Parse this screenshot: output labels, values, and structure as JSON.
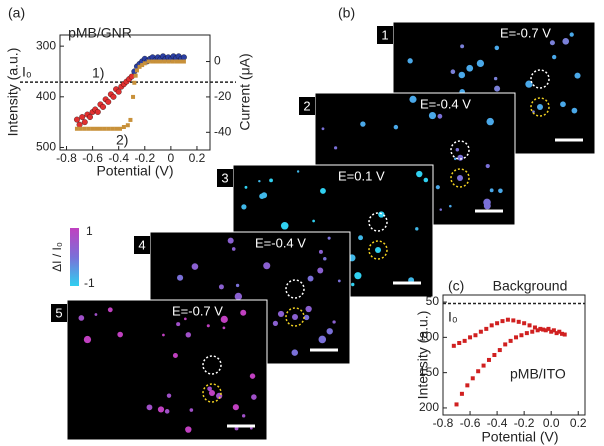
{
  "panel_labels": [
    "(a)",
    "(b)",
    "(c)"
  ],
  "frames": [
    {
      "label": "1",
      "text": "E=-0.7 V"
    },
    {
      "label": "2",
      "text": "E=-0.4 V"
    },
    {
      "label": "3",
      "text": "E=0.1 V"
    },
    {
      "label": "4",
      "text": "E=-0.4 V"
    },
    {
      "label": "5",
      "text": "E=-0.7 V"
    }
  ],
  "colorbar": {
    "label": "ΔI / I₀",
    "top": "1",
    "bottom": "-1"
  },
  "chart_data": [
    {
      "type": "scatter",
      "title": "pMB/GNR",
      "xlabel": "Potential (V)",
      "ylabel": "Intensity (a.u.)",
      "y2label": "Current (μA)",
      "xlim": [
        -0.85,
        0.3
      ],
      "xticks": [
        -0.8,
        -0.6,
        -0.4,
        -0.2,
        0,
        0.2
      ],
      "ylim": [
        278,
        505
      ],
      "yticks": [
        300,
        400,
        500
      ],
      "y2lim": [
        15,
        -50
      ],
      "y2ticks": [
        0,
        -20,
        -40
      ],
      "reference_line": 371,
      "annotations": [
        "I₀",
        "1)",
        "2)"
      ],
      "series": [
        {
          "color": "#2b3fa3",
          "marker": "circle",
          "x": [
            -0.28,
            -0.26,
            -0.24,
            -0.22,
            -0.2,
            -0.18,
            -0.16,
            -0.14,
            -0.12,
            -0.1,
            -0.08,
            -0.06,
            -0.04,
            -0.02,
            0,
            0.02,
            0.04,
            0.06,
            0.08,
            0.1
          ],
          "values": [
            350,
            340,
            335,
            330,
            325,
            330,
            325,
            322,
            328,
            322,
            326,
            320,
            325,
            322,
            326,
            320,
            324,
            320,
            325,
            322
          ]
        },
        {
          "color": "#e03030",
          "marker": "circle",
          "x": [
            -0.72,
            -0.7,
            -0.68,
            -0.66,
            -0.64,
            -0.62,
            -0.6,
            -0.58,
            -0.56,
            -0.54,
            -0.52,
            -0.5,
            -0.48,
            -0.46,
            -0.44,
            -0.42,
            -0.4,
            -0.38,
            -0.36,
            -0.34,
            -0.32,
            -0.3
          ],
          "values": [
            445,
            455,
            440,
            450,
            435,
            440,
            430,
            425,
            430,
            415,
            420,
            405,
            410,
            395,
            400,
            385,
            390,
            380,
            375,
            370,
            365,
            360
          ]
        },
        {
          "color": "#c8913a",
          "marker": "square",
          "axis": "y2",
          "x": [
            -0.72,
            -0.69,
            -0.66,
            -0.63,
            -0.6,
            -0.57,
            -0.54,
            -0.51,
            -0.48,
            -0.45,
            -0.42,
            -0.39,
            -0.36,
            -0.33,
            -0.31,
            -0.29,
            -0.28,
            -0.27,
            -0.26,
            -0.24,
            -0.22,
            -0.2,
            -0.17,
            -0.14,
            -0.11,
            -0.08,
            -0.05,
            -0.02,
            0.01,
            0.04,
            0.07,
            0.1
          ],
          "values": [
            -38,
            -38,
            -38,
            -38,
            -38,
            -38,
            -38,
            -38,
            -38,
            -38,
            -38,
            -38,
            -37,
            -36,
            -33,
            -20,
            -12,
            -8,
            -5,
            -3,
            -2,
            -1,
            0,
            0,
            0,
            0,
            0,
            0,
            0,
            0,
            0,
            0
          ]
        }
      ]
    },
    {
      "type": "scatter",
      "title": "Background",
      "xlabel": "Potential (V)",
      "ylabel": "Intensity (a.u.)",
      "xlim": [
        -0.8,
        0.25
      ],
      "xticks": [
        -0.8,
        -0.6,
        -0.4,
        -0.2,
        {
          "value": 0,
          "label": "0.0"
        },
        0.2
      ],
      "ylim": [
        40,
        210
      ],
      "yticks": [
        50,
        100,
        150,
        200
      ],
      "reference_line": 52,
      "annotations": [
        "I₀",
        "pMB/ITO"
      ],
      "series": [
        {
          "color": "#d02020",
          "marker": "square",
          "x": [
            -0.72,
            -0.68,
            -0.64,
            -0.6,
            -0.56,
            -0.52,
            -0.48,
            -0.44,
            -0.4,
            -0.36,
            -0.32,
            -0.28,
            -0.24,
            -0.2,
            -0.16,
            -0.12,
            -0.08,
            -0.04,
            0,
            0.04,
            0.08
          ],
          "values": [
            112,
            108,
            105,
            100,
            97,
            92,
            88,
            83,
            80,
            77,
            75,
            76,
            78,
            80,
            83,
            86,
            88,
            90,
            92,
            94,
            95
          ]
        },
        {
          "color": "#d02020",
          "marker": "square",
          "x": [
            -0.7,
            -0.66,
            -0.62,
            -0.58,
            -0.54,
            -0.5,
            -0.46,
            -0.42,
            -0.38,
            -0.34,
            -0.3,
            -0.26,
            -0.22,
            -0.18,
            -0.14,
            -0.1,
            -0.06,
            -0.02,
            0.02,
            0.06,
            0.1
          ],
          "values": [
            195,
            180,
            168,
            158,
            148,
            140,
            132,
            125,
            118,
            110,
            105,
            100,
            97,
            94,
            92,
            90,
            89,
            88,
            90,
            92,
            96
          ]
        }
      ]
    }
  ]
}
